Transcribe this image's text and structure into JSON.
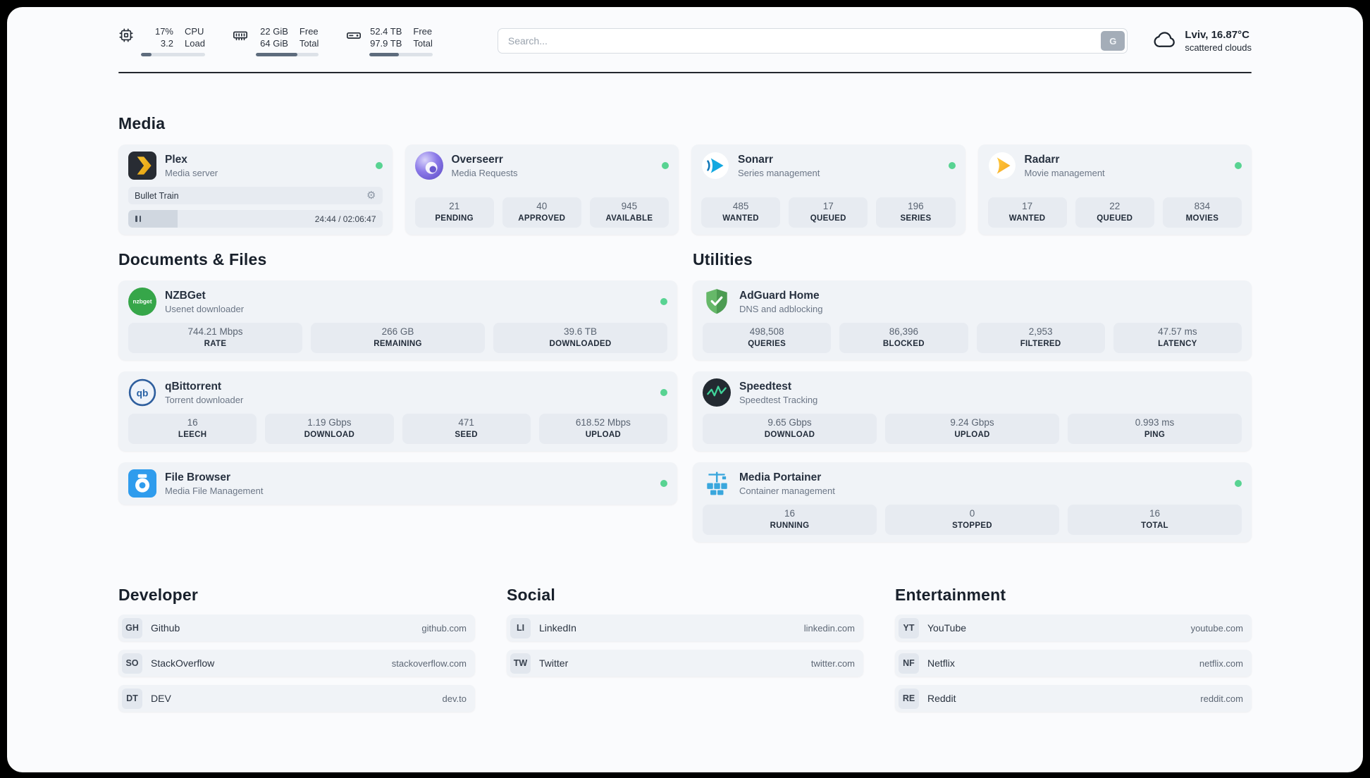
{
  "colors": {
    "status_online": "#58d392"
  },
  "header": {
    "cpu": {
      "line1a": "17%",
      "line2a": "3.2",
      "line1b": "CPU",
      "line2b": "Load",
      "progress_pct": 17
    },
    "ram": {
      "line1a": "22 GiB",
      "line2a": "64 GiB",
      "line1b": "Free",
      "line2b": "Total",
      "progress_pct": 66
    },
    "disk": {
      "line1a": "52.4 TB",
      "line2a": "97.9 TB",
      "line1b": "Free",
      "line2b": "Total",
      "progress_pct": 46
    },
    "search": {
      "placeholder": "Search...",
      "engine_button": "G"
    },
    "weather": {
      "location_temp": "Lviv, 16.87°C",
      "condition": "scattered clouds"
    }
  },
  "sections": {
    "media": {
      "title": "Media",
      "plex": {
        "name": "Plex",
        "subtitle": "Media server",
        "now_playing": "Bullet Train",
        "time": "24:44 / 02:06:47",
        "progress_pct": 19.5
      },
      "overseerr": {
        "name": "Overseerr",
        "subtitle": "Media Requests",
        "stats": [
          {
            "value": "21",
            "label": "PENDING"
          },
          {
            "value": "40",
            "label": "APPROVED"
          },
          {
            "value": "945",
            "label": "AVAILABLE"
          }
        ]
      },
      "sonarr": {
        "name": "Sonarr",
        "subtitle": "Series management",
        "stats": [
          {
            "value": "485",
            "label": "WANTED"
          },
          {
            "value": "17",
            "label": "QUEUED"
          },
          {
            "value": "196",
            "label": "SERIES"
          }
        ]
      },
      "radarr": {
        "name": "Radarr",
        "subtitle": "Movie management",
        "stats": [
          {
            "value": "17",
            "label": "WANTED"
          },
          {
            "value": "22",
            "label": "QUEUED"
          },
          {
            "value": "834",
            "label": "MOVIES"
          }
        ]
      }
    },
    "documents": {
      "title": "Documents & Files",
      "nzbget": {
        "name": "NZBGet",
        "subtitle": "Usenet downloader",
        "icon_text": "nzbget",
        "stats": [
          {
            "value": "744.21 Mbps",
            "label": "RATE"
          },
          {
            "value": "266 GB",
            "label": "REMAINING"
          },
          {
            "value": "39.6 TB",
            "label": "DOWNLOADED"
          }
        ]
      },
      "qbittorrent": {
        "name": "qBittorrent",
        "subtitle": "Torrent downloader",
        "icon_text": "qb",
        "stats": [
          {
            "value": "16",
            "label": "LEECH"
          },
          {
            "value": "1.19 Gbps",
            "label": "DOWNLOAD"
          },
          {
            "value": "471",
            "label": "SEED"
          },
          {
            "value": "618.52 Mbps",
            "label": "UPLOAD"
          }
        ]
      },
      "filebrowser": {
        "name": "File Browser",
        "subtitle": "Media File Management"
      }
    },
    "utilities": {
      "title": "Utilities",
      "adguard": {
        "name": "AdGuard Home",
        "subtitle": "DNS and adblocking",
        "stats": [
          {
            "value": "498,508",
            "label": "QUERIES"
          },
          {
            "value": "86,396",
            "label": "BLOCKED"
          },
          {
            "value": "2,953",
            "label": "FILTERED"
          },
          {
            "value": "47.57 ms",
            "label": "LATENCY"
          }
        ]
      },
      "speedtest": {
        "name": "Speedtest",
        "subtitle": "Speedtest Tracking",
        "stats": [
          {
            "value": "9.65 Gbps",
            "label": "DOWNLOAD"
          },
          {
            "value": "9.24 Gbps",
            "label": "UPLOAD"
          },
          {
            "value": "0.993 ms",
            "label": "PING"
          }
        ]
      },
      "portainer": {
        "name": "Media Portainer",
        "subtitle": "Container management",
        "stats": [
          {
            "value": "16",
            "label": "RUNNING"
          },
          {
            "value": "0",
            "label": "STOPPED"
          },
          {
            "value": "16",
            "label": "TOTAL"
          }
        ]
      }
    },
    "developer": {
      "title": "Developer",
      "links": [
        {
          "abbr": "GH",
          "name": "Github",
          "url": "github.com"
        },
        {
          "abbr": "SO",
          "name": "StackOverflow",
          "url": "stackoverflow.com"
        },
        {
          "abbr": "DT",
          "name": "DEV",
          "url": "dev.to"
        }
      ]
    },
    "social": {
      "title": "Social",
      "links": [
        {
          "abbr": "LI",
          "name": "LinkedIn",
          "url": "linkedin.com"
        },
        {
          "abbr": "TW",
          "name": "Twitter",
          "url": "twitter.com"
        }
      ]
    },
    "entertainment": {
      "title": "Entertainment",
      "links": [
        {
          "abbr": "YT",
          "name": "YouTube",
          "url": "youtube.com"
        },
        {
          "abbr": "NF",
          "name": "Netflix",
          "url": "netflix.com"
        },
        {
          "abbr": "RE",
          "name": "Reddit",
          "url": "reddit.com"
        }
      ]
    }
  }
}
